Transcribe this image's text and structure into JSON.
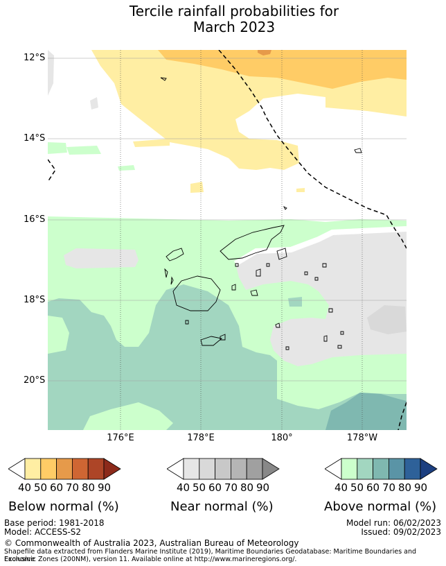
{
  "title": {
    "line1": "Tercile rainfall probabilities for",
    "line2": "March 2023"
  },
  "axes": {
    "lat_labels": [
      "12°S",
      "14°S",
      "16°S",
      "18°S",
      "20°S"
    ],
    "lon_labels": [
      "176°E",
      "178°E",
      "180°",
      "178°W"
    ]
  },
  "legends": [
    {
      "name": "below",
      "ticks": [
        "40",
        "50",
        "60",
        "70",
        "80",
        "90"
      ],
      "colors": [
        "#ffeea3",
        "#ffcc66",
        "#e69a4a",
        "#cf6633",
        "#ad4527",
        "#8c2a1a"
      ],
      "title": "Below normal (%)"
    },
    {
      "name": "near",
      "ticks": [
        "40",
        "50",
        "60",
        "70",
        "80",
        "90"
      ],
      "colors": [
        "#e6e6e6",
        "#d9d9d9",
        "#c8c8c8",
        "#b5b5b5",
        "#a0a0a0",
        "#888888"
      ],
      "title": "Near normal (%)"
    },
    {
      "name": "above",
      "ticks": [
        "40",
        "50",
        "60",
        "70",
        "80",
        "90"
      ],
      "colors": [
        "#ccffcc",
        "#a2d6c0",
        "#7fb8b0",
        "#5a94a6",
        "#2e6199",
        "#1c3f80"
      ],
      "title": "Above normal (%)"
    }
  ],
  "footer": {
    "base_period": "Base period: 1981-2018",
    "model": "Model: ACCESS-S2",
    "model_run": "Model run: 06/02/2023",
    "issued": "Issued: 09/02/2023",
    "copyright": "© Commonwealth of Australia 2023, Australian Bureau of Meteorology",
    "shapefile_line1": "Shapefile data extracted from Flanders Marine Institute (2019), Maritime Boundaries Geodatabase: Maritime Boundaries and Exclusive",
    "shapefile_line2": "Economic Zones (200NM), version 11. Available online at http://www.marineregions.org/."
  }
}
